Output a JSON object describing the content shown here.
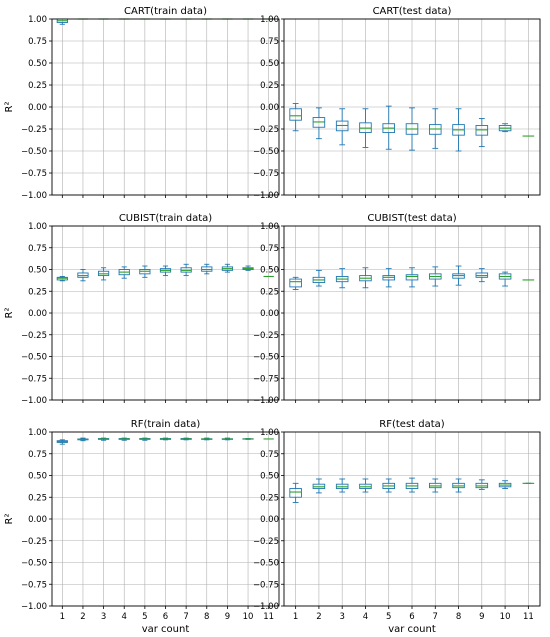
{
  "figure": {
    "xlabel": "var count",
    "ylabel": "R²"
  },
  "colors": {
    "box": "#1f77b4",
    "median": "#2ca02c",
    "grid": "#b0b0b0",
    "frame": "#000000"
  },
  "chart_data": [
    {
      "type": "box",
      "title": "CART(train data)",
      "xlabel": "",
      "ylabel": "R²",
      "ylim": [
        -1.0,
        1.0
      ],
      "yticks": [
        "1.00",
        "0.75",
        "0.50",
        "0.25",
        "0.00",
        "−0.25",
        "−0.50",
        "−0.75",
        "−1.00"
      ],
      "categories": [
        1,
        2,
        3,
        4,
        5,
        6,
        7,
        8,
        9,
        10,
        11
      ],
      "grid": true,
      "boxes": [
        {
          "x": 1,
          "whislo": 0.94,
          "q1": 0.96,
          "med": 0.98,
          "q3": 1.0,
          "whishi": 1.0
        },
        {
          "x": 2,
          "whislo": 1.0,
          "q1": 1.0,
          "med": 1.0,
          "q3": 1.0,
          "whishi": 1.0
        },
        {
          "x": 3,
          "whislo": 1.0,
          "q1": 1.0,
          "med": 1.0,
          "q3": 1.0,
          "whishi": 1.0
        },
        {
          "x": 4,
          "whislo": 1.0,
          "q1": 1.0,
          "med": 1.0,
          "q3": 1.0,
          "whishi": 1.0
        },
        {
          "x": 5,
          "whislo": 1.0,
          "q1": 1.0,
          "med": 1.0,
          "q3": 1.0,
          "whishi": 1.0
        },
        {
          "x": 6,
          "whislo": 1.0,
          "q1": 1.0,
          "med": 1.0,
          "q3": 1.0,
          "whishi": 1.0
        },
        {
          "x": 7,
          "whislo": 1.0,
          "q1": 1.0,
          "med": 1.0,
          "q3": 1.0,
          "whishi": 1.0
        },
        {
          "x": 8,
          "whislo": 1.0,
          "q1": 1.0,
          "med": 1.0,
          "q3": 1.0,
          "whishi": 1.0
        },
        {
          "x": 9,
          "whislo": 1.0,
          "q1": 1.0,
          "med": 1.0,
          "q3": 1.0,
          "whishi": 1.0
        },
        {
          "x": 10,
          "whislo": 1.0,
          "q1": 1.0,
          "med": 1.0,
          "q3": 1.0,
          "whishi": 1.0
        },
        {
          "x": 11,
          "whislo": 1.0,
          "q1": 1.0,
          "med": 1.0,
          "q3": 1.0,
          "whishi": 1.0
        }
      ]
    },
    {
      "type": "box",
      "title": "CART(test data)",
      "xlabel": "",
      "ylabel": "",
      "ylim": [
        -1.0,
        1.0
      ],
      "yticks": [
        "1.00",
        "0.75",
        "0.50",
        "0.25",
        "0.00",
        "−0.25",
        "−0.50",
        "−0.75",
        "−1.00"
      ],
      "categories": [
        1,
        2,
        3,
        4,
        5,
        6,
        7,
        8,
        9,
        10,
        11
      ],
      "grid": true,
      "boxes": [
        {
          "x": 1,
          "whislo": -0.27,
          "q1": -0.15,
          "med": -0.1,
          "q3": -0.02,
          "whishi": 0.04
        },
        {
          "x": 2,
          "whislo": -0.36,
          "q1": -0.23,
          "med": -0.17,
          "q3": -0.12,
          "whishi": -0.01
        },
        {
          "x": 3,
          "whislo": -0.43,
          "q1": -0.27,
          "med": -0.21,
          "q3": -0.16,
          "whishi": -0.02
        },
        {
          "x": 4,
          "whislo": -0.46,
          "q1": -0.29,
          "med": -0.24,
          "q3": -0.18,
          "whishi": -0.02
        },
        {
          "x": 5,
          "whislo": -0.48,
          "q1": -0.29,
          "med": -0.24,
          "q3": -0.19,
          "whishi": 0.01
        },
        {
          "x": 6,
          "whislo": -0.49,
          "q1": -0.31,
          "med": -0.25,
          "q3": -0.19,
          "whishi": -0.01
        },
        {
          "x": 7,
          "whislo": -0.47,
          "q1": -0.31,
          "med": -0.25,
          "q3": -0.2,
          "whishi": -0.02
        },
        {
          "x": 8,
          "whislo": -0.5,
          "q1": -0.32,
          "med": -0.26,
          "q3": -0.2,
          "whishi": -0.02
        },
        {
          "x": 9,
          "whislo": -0.45,
          "q1": -0.32,
          "med": -0.26,
          "q3": -0.21,
          "whishi": -0.13
        },
        {
          "x": 10,
          "whislo": -0.28,
          "q1": -0.27,
          "med": -0.24,
          "q3": -0.21,
          "whishi": -0.19
        },
        {
          "x": 11,
          "whislo": -0.33,
          "q1": -0.33,
          "med": -0.33,
          "q3": -0.33,
          "whishi": -0.33
        }
      ]
    },
    {
      "type": "box",
      "title": "CUBIST(train data)",
      "xlabel": "",
      "ylabel": "R²",
      "ylim": [
        -1.0,
        1.0
      ],
      "yticks": [
        "1.00",
        "0.75",
        "0.50",
        "0.25",
        "0.00",
        "−0.25",
        "−0.50",
        "−0.75",
        "−1.00"
      ],
      "categories": [
        1,
        2,
        3,
        4,
        5,
        6,
        7,
        8,
        9,
        10,
        11
      ],
      "grid": true,
      "boxes": [
        {
          "x": 1,
          "whislo": 0.37,
          "q1": 0.38,
          "med": 0.4,
          "q3": 0.41,
          "whishi": 0.42
        },
        {
          "x": 2,
          "whislo": 0.37,
          "q1": 0.41,
          "med": 0.43,
          "q3": 0.46,
          "whishi": 0.5
        },
        {
          "x": 3,
          "whislo": 0.38,
          "q1": 0.43,
          "med": 0.45,
          "q3": 0.48,
          "whishi": 0.52
        },
        {
          "x": 4,
          "whislo": 0.4,
          "q1": 0.44,
          "med": 0.47,
          "q3": 0.5,
          "whishi": 0.53
        },
        {
          "x": 5,
          "whislo": 0.41,
          "q1": 0.45,
          "med": 0.48,
          "q3": 0.5,
          "whishi": 0.54
        },
        {
          "x": 6,
          "whislo": 0.43,
          "q1": 0.47,
          "med": 0.49,
          "q3": 0.51,
          "whishi": 0.54
        },
        {
          "x": 7,
          "whislo": 0.43,
          "q1": 0.47,
          "med": 0.49,
          "q3": 0.52,
          "whishi": 0.56
        },
        {
          "x": 8,
          "whislo": 0.45,
          "q1": 0.48,
          "med": 0.5,
          "q3": 0.53,
          "whishi": 0.56
        },
        {
          "x": 9,
          "whislo": 0.47,
          "q1": 0.49,
          "med": 0.51,
          "q3": 0.53,
          "whishi": 0.56
        },
        {
          "x": 10,
          "whislo": 0.49,
          "q1": 0.5,
          "med": 0.51,
          "q3": 0.52,
          "whishi": 0.54
        },
        {
          "x": 11,
          "whislo": 0.42,
          "q1": 0.42,
          "med": 0.42,
          "q3": 0.42,
          "whishi": 0.42
        }
      ]
    },
    {
      "type": "box",
      "title": "CUBIST(test data)",
      "xlabel": "",
      "ylabel": "",
      "ylim": [
        -1.0,
        1.0
      ],
      "yticks": [
        "1.00",
        "0.75",
        "0.50",
        "0.25",
        "0.00",
        "−0.25",
        "−0.50",
        "−0.75",
        "−1.00"
      ],
      "categories": [
        1,
        2,
        3,
        4,
        5,
        6,
        7,
        8,
        9,
        10,
        11
      ],
      "grid": true,
      "boxes": [
        {
          "x": 1,
          "whislo": 0.27,
          "q1": 0.3,
          "med": 0.36,
          "q3": 0.39,
          "whishi": 0.41
        },
        {
          "x": 2,
          "whislo": 0.31,
          "q1": 0.35,
          "med": 0.38,
          "q3": 0.41,
          "whishi": 0.49
        },
        {
          "x": 3,
          "whislo": 0.29,
          "q1": 0.36,
          "med": 0.39,
          "q3": 0.42,
          "whishi": 0.51
        },
        {
          "x": 4,
          "whislo": 0.29,
          "q1": 0.37,
          "med": 0.4,
          "q3": 0.43,
          "whishi": 0.52
        },
        {
          "x": 5,
          "whislo": 0.3,
          "q1": 0.38,
          "med": 0.41,
          "q3": 0.43,
          "whishi": 0.51
        },
        {
          "x": 6,
          "whislo": 0.3,
          "q1": 0.38,
          "med": 0.42,
          "q3": 0.44,
          "whishi": 0.52
        },
        {
          "x": 7,
          "whislo": 0.31,
          "q1": 0.39,
          "med": 0.42,
          "q3": 0.45,
          "whishi": 0.53
        },
        {
          "x": 8,
          "whislo": 0.32,
          "q1": 0.4,
          "med": 0.43,
          "q3": 0.45,
          "whishi": 0.54
        },
        {
          "x": 9,
          "whislo": 0.36,
          "q1": 0.41,
          "med": 0.43,
          "q3": 0.46,
          "whishi": 0.51
        },
        {
          "x": 10,
          "whislo": 0.31,
          "q1": 0.39,
          "med": 0.42,
          "q3": 0.45,
          "whishi": 0.47
        },
        {
          "x": 11,
          "whislo": 0.38,
          "q1": 0.38,
          "med": 0.38,
          "q3": 0.38,
          "whishi": 0.38
        }
      ]
    },
    {
      "type": "box",
      "title": "RF(train data)",
      "xlabel": "var count",
      "ylabel": "R²",
      "ylim": [
        -1.0,
        1.0
      ],
      "yticks": [
        "1.00",
        "0.75",
        "0.50",
        "0.25",
        "0.00",
        "−0.25",
        "−0.50",
        "−0.75",
        "−1.00"
      ],
      "categories": [
        1,
        2,
        3,
        4,
        5,
        6,
        7,
        8,
        9,
        10,
        11
      ],
      "grid": true,
      "boxes": [
        {
          "x": 1,
          "whislo": 0.86,
          "q1": 0.88,
          "med": 0.89,
          "q3": 0.9,
          "whishi": 0.91
        },
        {
          "x": 2,
          "whislo": 0.9,
          "q1": 0.91,
          "med": 0.915,
          "q3": 0.92,
          "whishi": 0.93
        },
        {
          "x": 3,
          "whislo": 0.905,
          "q1": 0.915,
          "med": 0.92,
          "q3": 0.925,
          "whishi": 0.93
        },
        {
          "x": 4,
          "whislo": 0.905,
          "q1": 0.915,
          "med": 0.92,
          "q3": 0.925,
          "whishi": 0.93
        },
        {
          "x": 5,
          "whislo": 0.905,
          "q1": 0.915,
          "med": 0.92,
          "q3": 0.925,
          "whishi": 0.93
        },
        {
          "x": 6,
          "whislo": 0.91,
          "q1": 0.915,
          "med": 0.92,
          "q3": 0.925,
          "whishi": 0.93
        },
        {
          "x": 7,
          "whislo": 0.91,
          "q1": 0.915,
          "med": 0.92,
          "q3": 0.925,
          "whishi": 0.93
        },
        {
          "x": 8,
          "whislo": 0.91,
          "q1": 0.915,
          "med": 0.92,
          "q3": 0.922,
          "whishi": 0.93
        },
        {
          "x": 9,
          "whislo": 0.91,
          "q1": 0.915,
          "med": 0.92,
          "q3": 0.922,
          "whishi": 0.93
        },
        {
          "x": 10,
          "whislo": 0.915,
          "q1": 0.918,
          "med": 0.92,
          "q3": 0.922,
          "whishi": 0.925
        },
        {
          "x": 11,
          "whislo": 0.92,
          "q1": 0.92,
          "med": 0.92,
          "q3": 0.92,
          "whishi": 0.92
        }
      ]
    },
    {
      "type": "box",
      "title": "RF(test data)",
      "xlabel": "var count",
      "ylabel": "",
      "ylim": [
        -1.0,
        1.0
      ],
      "yticks": [
        "1.00",
        "0.75",
        "0.50",
        "0.25",
        "0.00",
        "−0.25",
        "−0.50",
        "−0.75",
        "−1.00"
      ],
      "categories": [
        1,
        2,
        3,
        4,
        5,
        6,
        7,
        8,
        9,
        10,
        11
      ],
      "grid": true,
      "boxes": [
        {
          "x": 1,
          "whislo": 0.19,
          "q1": 0.25,
          "med": 0.31,
          "q3": 0.35,
          "whishi": 0.41
        },
        {
          "x": 2,
          "whislo": 0.3,
          "q1": 0.35,
          "med": 0.37,
          "q3": 0.4,
          "whishi": 0.46
        },
        {
          "x": 3,
          "whislo": 0.31,
          "q1": 0.35,
          "med": 0.37,
          "q3": 0.4,
          "whishi": 0.46
        },
        {
          "x": 4,
          "whislo": 0.31,
          "q1": 0.35,
          "med": 0.37,
          "q3": 0.4,
          "whishi": 0.46
        },
        {
          "x": 5,
          "whislo": 0.31,
          "q1": 0.35,
          "med": 0.38,
          "q3": 0.41,
          "whishi": 0.46
        },
        {
          "x": 6,
          "whislo": 0.31,
          "q1": 0.35,
          "med": 0.38,
          "q3": 0.41,
          "whishi": 0.47
        },
        {
          "x": 7,
          "whislo": 0.31,
          "q1": 0.36,
          "med": 0.38,
          "q3": 0.41,
          "whishi": 0.46
        },
        {
          "x": 8,
          "whislo": 0.31,
          "q1": 0.36,
          "med": 0.38,
          "q3": 0.41,
          "whishi": 0.46
        },
        {
          "x": 9,
          "whislo": 0.34,
          "q1": 0.36,
          "med": 0.38,
          "q3": 0.41,
          "whishi": 0.45
        },
        {
          "x": 10,
          "whislo": 0.35,
          "q1": 0.37,
          "med": 0.39,
          "q3": 0.41,
          "whishi": 0.44
        },
        {
          "x": 11,
          "whislo": 0.41,
          "q1": 0.41,
          "med": 0.41,
          "q3": 0.41,
          "whishi": 0.41
        }
      ]
    }
  ]
}
